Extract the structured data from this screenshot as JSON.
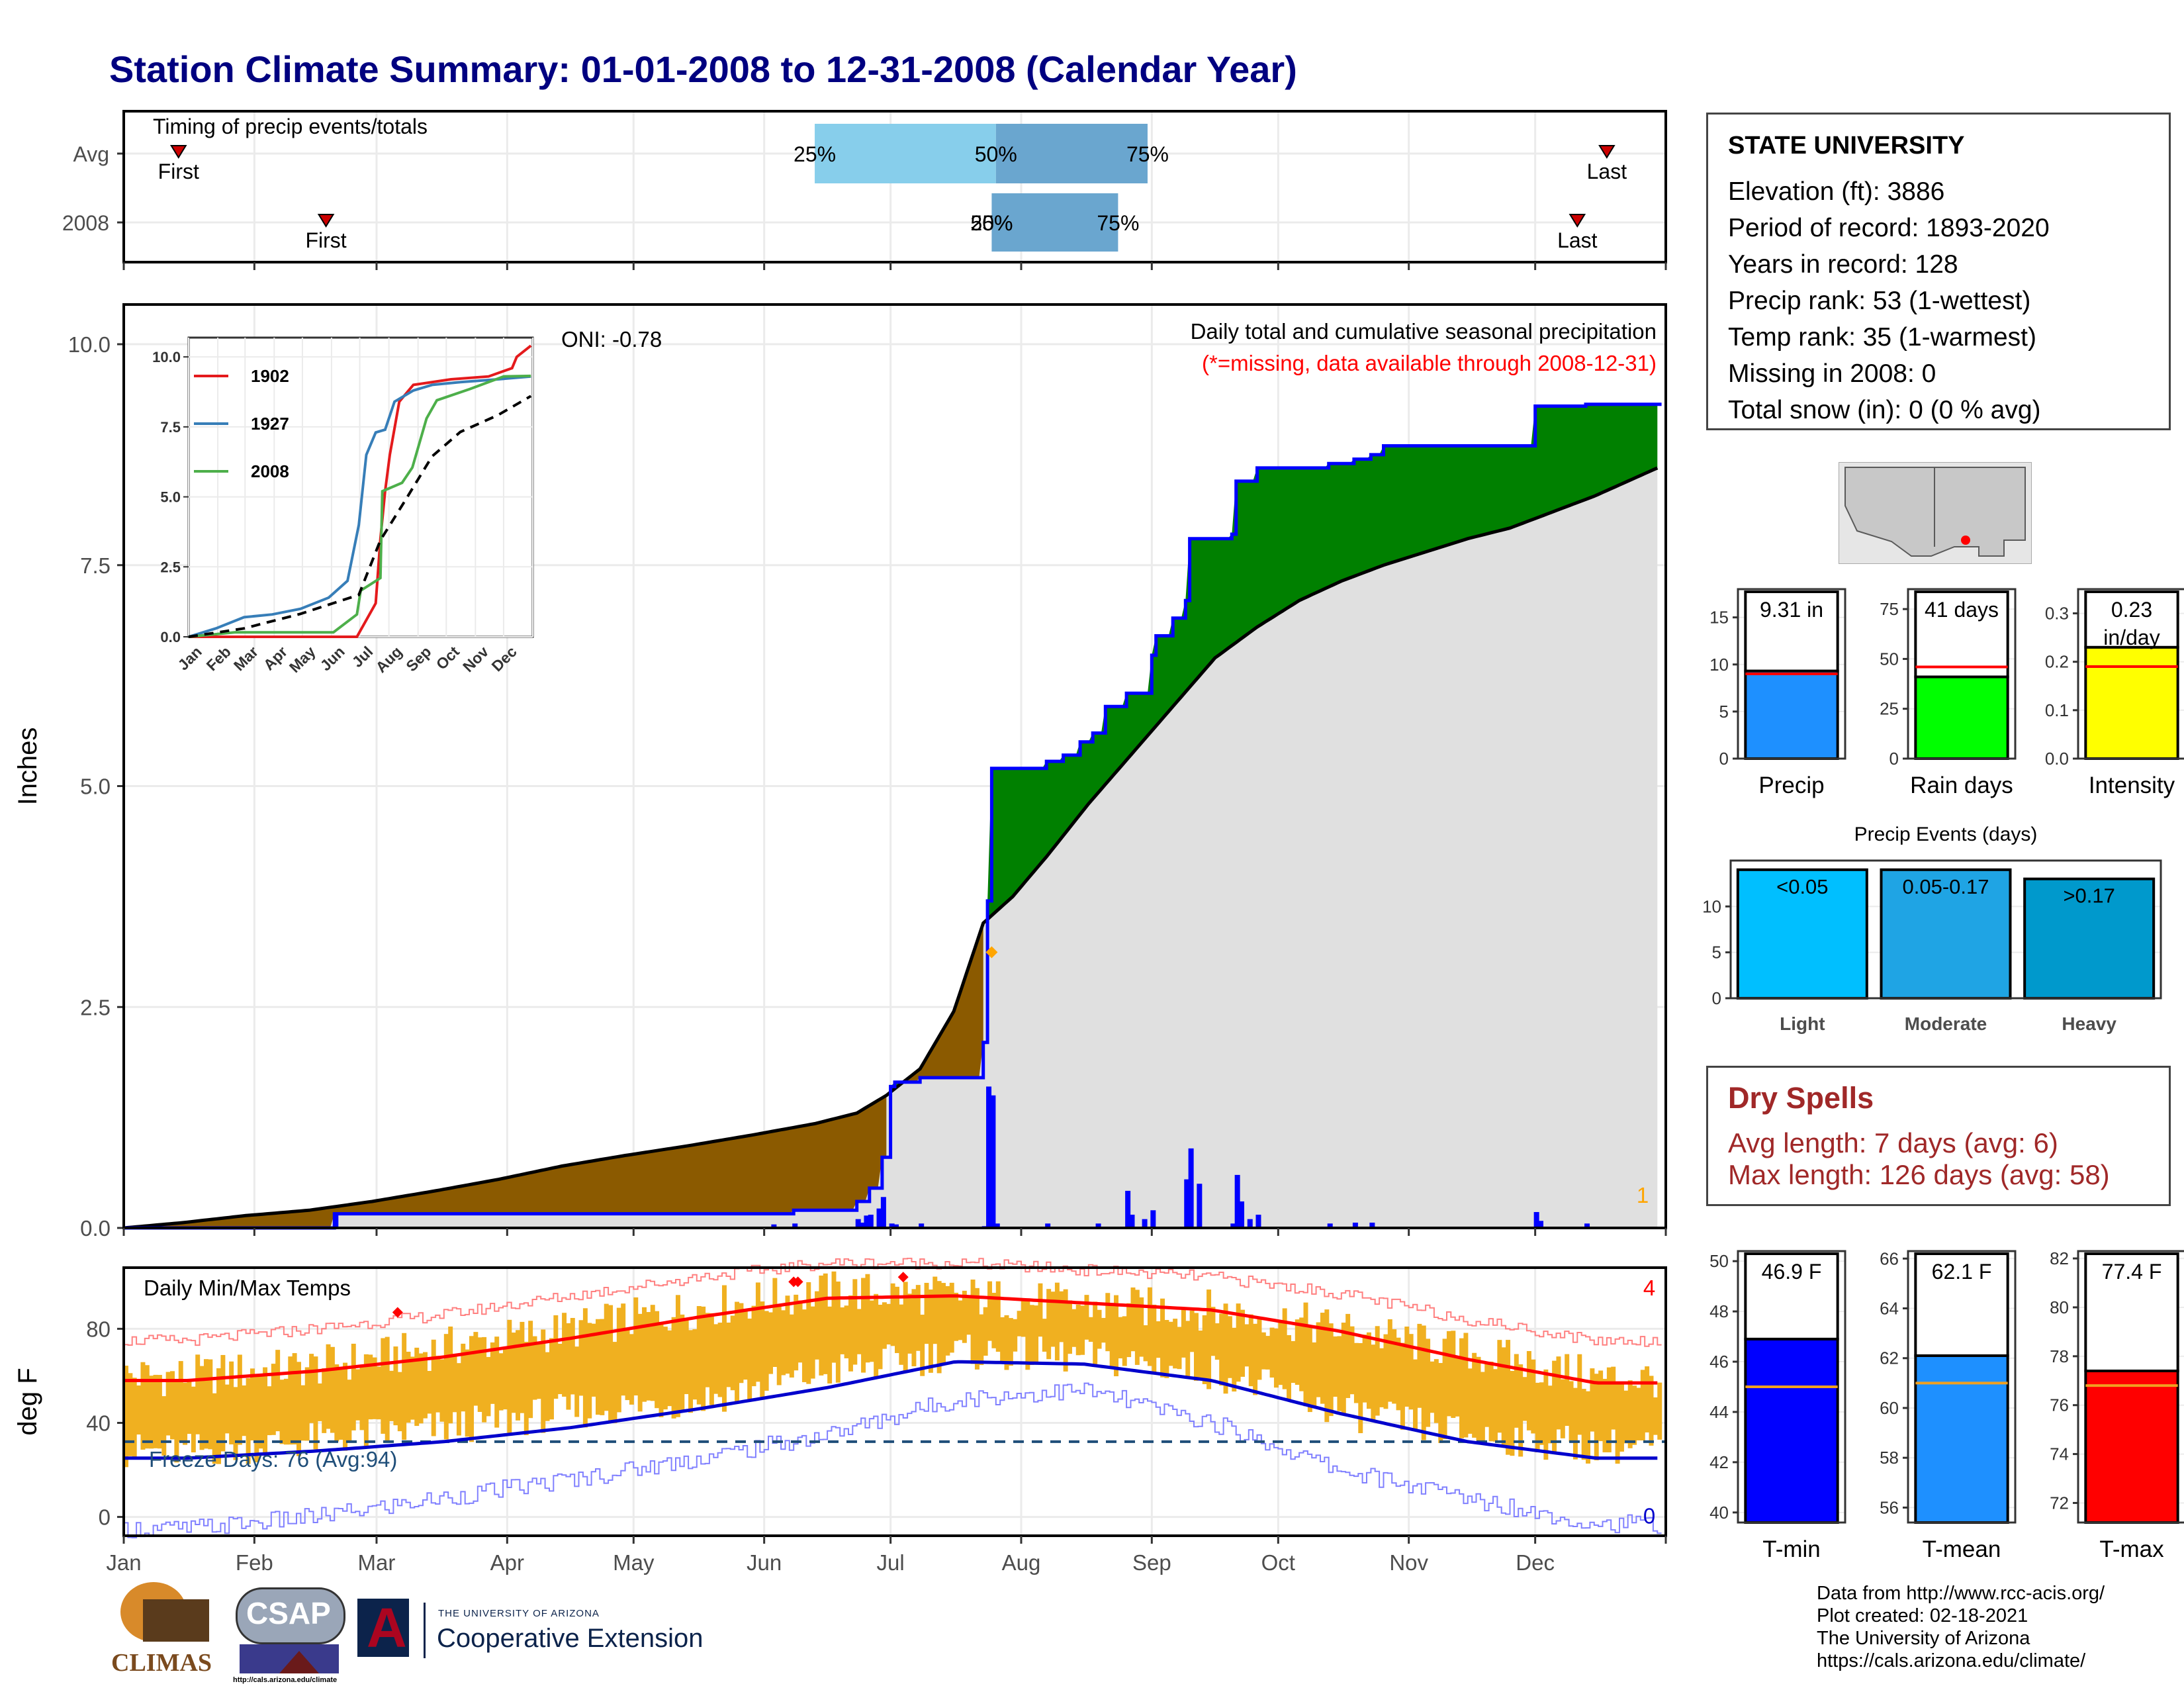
{
  "title": "Station Climate Summary: 01-01-2008 to 12-31-2008 (Calendar Year)",
  "station": {
    "name": "STATE UNIVERSITY",
    "lines": [
      "Elevation (ft): 3886",
      "Period of record: 1893-2020",
      "Years in record: 128",
      "Precip rank: 53 (1-wettest)",
      "Temp rank: 35 (1-warmest)",
      "Missing in 2008: 0",
      "Total snow (in): 0 (0 % avg)"
    ]
  },
  "dry_spells": {
    "title": "Dry Spells",
    "avg": "Avg length: 7 days (avg: 6)",
    "max": "Max length: 126 days (avg: 58)"
  },
  "footer": [
    "Data from http://www.rcc-acis.org/",
    "Plot created: 02-18-2021",
    "The University of Arizona",
    "https://cals.arizona.edu/climate/"
  ],
  "logos": {
    "climas": "CLIMAS",
    "csap": "CSAP",
    "csap_url": "http://cals.arizona.edu/climate",
    "ua_small": "THE UNIVERSITY OF ARIZONA",
    "ua_big": "Cooperative Extension",
    "ua_letter": "A"
  },
  "colors": {
    "title": "#000080",
    "deficit": "#8b5a00",
    "surplus": "#008000",
    "avg_cum": "#e0e0e0",
    "daily_bar": "#0000ff",
    "temp_bar": "#f0b020",
    "tmax": "#ff0000",
    "tmin": "#0000cc",
    "dry_text": "#a02828"
  },
  "chart_data": [
    {
      "id": "timing",
      "type": "bar",
      "title": "Timing of precip events/totals",
      "rows": [
        {
          "label": "Avg",
          "first": "01-14",
          "last": "12-18",
          "q25": "06-13",
          "q50": "07-26",
          "q75": "08-31"
        },
        {
          "label": "2008",
          "first": "02-18",
          "last": "12-11",
          "q25": "07-25",
          "q50": "07-25",
          "q75": "08-24"
        }
      ],
      "marker_labels": {
        "first": "First",
        "last": "Last"
      },
      "quantile_labels": [
        "25%",
        "50%",
        "75%"
      ],
      "notes": "2008 row prints overlapping 25% and 50% labels at the same date"
    },
    {
      "id": "precip",
      "type": "area",
      "title": "Daily total and cumulative seasonal precipitation",
      "subtitle": "(*=missing, data available through 2008-12-31)",
      "ylabel": "Inches",
      "ylim": [
        0,
        10
      ],
      "yticks": [
        0,
        2.5,
        5,
        7.5,
        10
      ],
      "yticklabels": [
        "0.0",
        "2.5",
        "5.0",
        "7.5",
        "10.0"
      ],
      "xlabels": [
        "Jan",
        "Feb",
        "Mar",
        "Apr",
        "May",
        "Jun",
        "Jul",
        "Aug",
        "Sep",
        "Oct",
        "Nov",
        "Dec"
      ],
      "oni": "ONI: -0.78",
      "missing_count": "1",
      "cumulative_2008": [
        [
          1,
          0
        ],
        [
          50,
          0
        ],
        [
          51,
          0.16
        ],
        [
          155,
          0.16
        ],
        [
          160,
          0.2
        ],
        [
          175,
          0.3
        ],
        [
          178,
          0.45
        ],
        [
          181,
          0.8
        ],
        [
          183,
          1.6
        ],
        [
          184,
          1.65
        ],
        [
          190,
          1.7
        ],
        [
          205,
          2.1
        ],
        [
          206,
          3.7
        ],
        [
          207,
          5.2
        ],
        [
          220,
          5.28
        ],
        [
          224,
          5.35
        ],
        [
          228,
          5.5
        ],
        [
          231,
          5.6
        ],
        [
          234,
          5.9
        ],
        [
          239,
          6.05
        ],
        [
          244,
          6.05
        ],
        [
          245,
          6.48
        ],
        [
          246,
          6.7
        ],
        [
          250,
          6.9
        ],
        [
          253,
          7.1
        ],
        [
          254,
          7.8
        ],
        [
          264,
          7.85
        ],
        [
          265,
          8.45
        ],
        [
          270,
          8.6
        ],
        [
          286,
          8.6
        ],
        [
          287,
          8.65
        ],
        [
          292,
          8.65
        ],
        [
          293,
          8.7
        ],
        [
          297,
          8.75
        ],
        [
          300,
          8.85
        ],
        [
          335,
          8.85
        ],
        [
          336,
          9.3
        ],
        [
          348,
          9.32
        ],
        [
          365,
          9.32
        ]
      ],
      "cumulative_avg": [
        [
          1,
          0
        ],
        [
          15,
          0.06
        ],
        [
          30,
          0.14
        ],
        [
          45,
          0.2
        ],
        [
          60,
          0.3
        ],
        [
          75,
          0.42
        ],
        [
          90,
          0.55
        ],
        [
          105,
          0.7
        ],
        [
          120,
          0.82
        ],
        [
          135,
          0.93
        ],
        [
          150,
          1.05
        ],
        [
          165,
          1.18
        ],
        [
          175,
          1.3
        ],
        [
          182,
          1.5
        ],
        [
          190,
          1.8
        ],
        [
          198,
          2.45
        ],
        [
          205,
          3.45
        ],
        [
          212,
          3.75
        ],
        [
          220,
          4.2
        ],
        [
          230,
          4.8
        ],
        [
          240,
          5.35
        ],
        [
          250,
          5.9
        ],
        [
          260,
          6.45
        ],
        [
          270,
          6.8
        ],
        [
          280,
          7.1
        ],
        [
          290,
          7.32
        ],
        [
          300,
          7.5
        ],
        [
          310,
          7.65
        ],
        [
          320,
          7.8
        ],
        [
          330,
          7.92
        ],
        [
          340,
          8.1
        ],
        [
          350,
          8.28
        ],
        [
          365,
          8.6
        ]
      ],
      "daily_2008": [
        [
          51,
          0.16
        ],
        [
          155,
          0.04
        ],
        [
          160,
          0.05
        ],
        [
          175,
          0.1
        ],
        [
          176,
          0.06
        ],
        [
          177,
          0.14
        ],
        [
          178,
          0.15
        ],
        [
          180,
          0.22
        ],
        [
          181,
          0.35
        ],
        [
          183,
          0.05
        ],
        [
          184,
          0.04
        ],
        [
          190,
          0.05
        ],
        [
          205,
          0.02
        ],
        [
          206,
          1.6
        ],
        [
          207,
          1.5
        ],
        [
          208,
          0.05
        ],
        [
          220,
          0.05
        ],
        [
          232,
          0.05
        ],
        [
          239,
          0.42
        ],
        [
          240,
          0.15
        ],
        [
          243,
          0.1
        ],
        [
          245,
          0.2
        ],
        [
          253,
          0.55
        ],
        [
          254,
          0.9
        ],
        [
          256,
          0.5
        ],
        [
          264,
          0.05
        ],
        [
          265,
          0.6
        ],
        [
          266,
          0.3
        ],
        [
          268,
          0.1
        ],
        [
          270,
          0.15
        ],
        [
          287,
          0.05
        ],
        [
          293,
          0.06
        ],
        [
          297,
          0.06
        ],
        [
          336,
          0.18
        ],
        [
          337,
          0.08
        ],
        [
          348,
          0.05
        ]
      ],
      "avg_marker": {
        "x": 207,
        "y": 3.12
      }
    },
    {
      "id": "inset",
      "type": "line",
      "ylim": [
        0,
        10
      ],
      "yticklabels": [
        "0.0",
        "2.5",
        "5.0",
        "7.5",
        "10.0"
      ],
      "xlabels": [
        "Jan",
        "Feb",
        "Mar",
        "Apr",
        "May",
        "Jun",
        "Jul",
        "Aug",
        "Sep",
        "Oct",
        "Nov",
        "Dec"
      ],
      "series": [
        {
          "name": "1902",
          "color": "#e41a1c",
          "points": [
            [
              1,
              0
            ],
            [
              180,
              0
            ],
            [
              200,
              1.2
            ],
            [
              205,
              3.5
            ],
            [
              210,
              5.2
            ],
            [
              215,
              6.5
            ],
            [
              225,
              8.4
            ],
            [
              240,
              9
            ],
            [
              280,
              9.2
            ],
            [
              320,
              9.3
            ],
            [
              345,
              9.6
            ],
            [
              350,
              10
            ],
            [
              365,
              10.4
            ]
          ]
        },
        {
          "name": "1927",
          "color": "#377eb8",
          "points": [
            [
              1,
              0
            ],
            [
              30,
              0.3
            ],
            [
              60,
              0.7
            ],
            [
              90,
              0.8
            ],
            [
              120,
              1
            ],
            [
              150,
              1.4
            ],
            [
              170,
              2
            ],
            [
              182,
              4
            ],
            [
              190,
              6.5
            ],
            [
              200,
              7.3
            ],
            [
              210,
              7.4
            ],
            [
              220,
              8.4
            ],
            [
              240,
              8.8
            ],
            [
              260,
              9
            ],
            [
              290,
              9.1
            ],
            [
              330,
              9.2
            ],
            [
              365,
              9.3
            ]
          ]
        },
        {
          "name": "2008",
          "color": "#4daf4a",
          "points": [
            [
              1,
              0
            ],
            [
              50,
              0.16
            ],
            [
              155,
              0.16
            ],
            [
              180,
              0.8
            ],
            [
              184,
              1.65
            ],
            [
              205,
              2.1
            ],
            [
              207,
              5.2
            ],
            [
              228,
              5.5
            ],
            [
              239,
              6.05
            ],
            [
              254,
              7.8
            ],
            [
              265,
              8.45
            ],
            [
              300,
              8.85
            ],
            [
              336,
              9.3
            ],
            [
              365,
              9.32
            ]
          ]
        },
        {
          "name": "Avg",
          "color": "#000000",
          "dashed": true,
          "points": [
            [
              1,
              0
            ],
            [
              60,
              0.3
            ],
            [
              120,
              0.82
            ],
            [
              182,
              1.5
            ],
            [
              205,
              3.45
            ],
            [
              230,
              4.8
            ],
            [
              260,
              6.45
            ],
            [
              290,
              7.32
            ],
            [
              330,
              7.92
            ],
            [
              365,
              8.6
            ]
          ]
        }
      ]
    },
    {
      "id": "temps",
      "type": "bar",
      "title": "Daily Min/Max Temps",
      "ylabel": "deg F",
      "ylim": [
        -8,
        106
      ],
      "yticks": [
        0,
        40,
        80
      ],
      "yticklabels": [
        "0",
        "40",
        "80"
      ],
      "xlabels": [
        "Jan",
        "Feb",
        "Mar",
        "Apr",
        "May",
        "Jun",
        "Jul",
        "Aug",
        "Sep",
        "Oct",
        "Nov",
        "Dec"
      ],
      "freeze_label": "Freeze Days: 76 (Avg:94)",
      "freeze_line": 32,
      "record_high_count": "4",
      "record_low_count": "0",
      "avg_tmax_monthly": [
        58,
        62,
        68,
        76,
        85,
        93,
        94,
        91,
        88,
        79,
        67,
        57
      ],
      "avg_tmin_monthly": [
        25,
        28,
        32,
        38,
        46,
        55,
        66,
        65,
        58,
        44,
        32,
        25
      ],
      "record_high_monthly": [
        75,
        80,
        86,
        94,
        102,
        108,
        108,
        105,
        102,
        95,
        84,
        75
      ],
      "record_low_monthly": [
        -5,
        0,
        8,
        16,
        25,
        35,
        50,
        54,
        40,
        20,
        8,
        -3
      ],
      "obs_tmax_monthly": [
        60,
        64,
        72,
        80,
        89,
        96,
        94,
        90,
        88,
        80,
        70,
        59
      ],
      "obs_tmin_monthly": [
        28,
        33,
        38,
        45,
        50,
        62,
        70,
        68,
        62,
        45,
        35,
        30
      ],
      "record_high_days": [
        [
          66,
          87
        ],
        [
          160,
          100
        ],
        [
          161,
          100
        ],
        [
          186,
          102
        ]
      ]
    },
    {
      "id": "precip_summary",
      "type": "bar",
      "categories": [
        "Precip",
        "Rain days",
        "Intensity"
      ],
      "values": [
        9.31,
        41,
        0.23
      ],
      "averages": [
        9.0,
        46,
        0.19
      ],
      "value_labels": [
        "9.31 in",
        "41 days",
        "0.23 in/day"
      ],
      "ylims": [
        [
          0,
          18
        ],
        [
          0,
          85
        ],
        [
          0,
          0.35
        ]
      ],
      "yticks": [
        [
          0,
          5,
          10,
          15
        ],
        [
          0,
          25,
          50,
          75
        ],
        [
          0.0,
          0.1,
          0.2,
          0.3
        ]
      ],
      "yticklabels": [
        [
          "0",
          "5",
          "10",
          "15"
        ],
        [
          "0",
          "25",
          "50",
          "75"
        ],
        [
          "0.0",
          "0.1",
          "0.2",
          "0.3"
        ]
      ],
      "bar_colors": [
        "#1e90ff",
        "#00ff00",
        "#ffff00"
      ]
    },
    {
      "id": "precip_events",
      "type": "bar",
      "title": "Precip Events (days)",
      "categories": [
        "Light",
        "Moderate",
        "Heavy"
      ],
      "values": [
        14,
        14,
        13
      ],
      "value_labels": [
        "<0.05",
        "0.05-0.17",
        ">0.17"
      ],
      "ylim": [
        0,
        15
      ],
      "yticks": [
        0,
        5,
        10
      ],
      "yticklabels": [
        "0",
        "5",
        "10"
      ],
      "bar_colors": [
        "#00bfff",
        "#1fa4e4",
        "#0099cc"
      ]
    },
    {
      "id": "temp_summary",
      "type": "bar",
      "categories": [
        "T-min",
        "T-mean",
        "T-max"
      ],
      "values": [
        46.9,
        62.1,
        77.4
      ],
      "averages": [
        45.0,
        61.0,
        76.8
      ],
      "value_labels": [
        "46.9 F",
        "62.1 F",
        "77.4 F"
      ],
      "ylims": [
        [
          39.6,
          50.4
        ],
        [
          55.4,
          66.3
        ],
        [
          71.2,
          82.3
        ]
      ],
      "yticks": [
        [
          40,
          42,
          44,
          46,
          48,
          50
        ],
        [
          56,
          58,
          60,
          62,
          64,
          66
        ],
        [
          72,
          74,
          76,
          78,
          80,
          82
        ]
      ],
      "yticklabels": [
        [
          "40",
          "42",
          "44",
          "46",
          "48",
          "50"
        ],
        [
          "56",
          "58",
          "60",
          "62",
          "64",
          "66"
        ],
        [
          "72",
          "74",
          "76",
          "78",
          "80",
          "82"
        ]
      ],
      "bar_colors": [
        "#0000ff",
        "#1e90ff",
        "#ff0000"
      ]
    }
  ]
}
